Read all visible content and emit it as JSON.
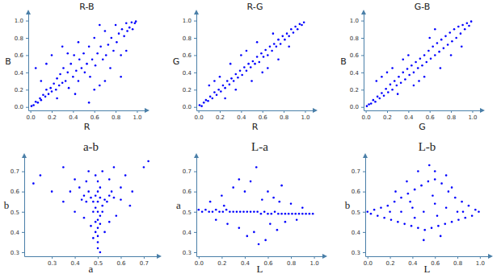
{
  "chart_data": [
    {
      "type": "scatter",
      "title": "R-B",
      "x_label": "R",
      "y_label": "B",
      "color": "#0000ff",
      "marker": "circle",
      "xlim": [
        -0.02,
        1.08
      ],
      "ylim": [
        -0.04,
        1.08
      ],
      "xticks": [
        {
          "value": 0,
          "label": "0.0"
        },
        0.2,
        0.4,
        0.6,
        0.8,
        {
          "value": 1,
          "label": "1.0"
        }
      ],
      "yticks": [
        {
          "value": 0,
          "label": "0.0"
        },
        0.2,
        0.4,
        0.6,
        0.8,
        {
          "value": 1,
          "label": "1.0"
        }
      ],
      "x": [
        0.01,
        0.03,
        0.05,
        0.07,
        0.09,
        0.1,
        0.12,
        0.14,
        0.15,
        0.17,
        0.19,
        0.2,
        0.22,
        0.24,
        0.25,
        0.27,
        0.28,
        0.3,
        0.31,
        0.33,
        0.35,
        0.36,
        0.38,
        0.4,
        0.41,
        0.43,
        0.45,
        0.46,
        0.48,
        0.5,
        0.51,
        0.53,
        0.55,
        0.56,
        0.58,
        0.6,
        0.61,
        0.63,
        0.65,
        0.66,
        0.68,
        0.7,
        0.71,
        0.73,
        0.75,
        0.76,
        0.78,
        0.8,
        0.81,
        0.83,
        0.85,
        0.86,
        0.88,
        0.9,
        0.91,
        0.93,
        0.95,
        0.96,
        0.98,
        0.99,
        0.05,
        0.1,
        0.2,
        0.15,
        0.3,
        0.55,
        0.7,
        0.85,
        0.9,
        0.6,
        0.42,
        0.25,
        0.65,
        0.45,
        0.35
      ],
      "values": [
        0.01,
        0.02,
        0.06,
        0.05,
        0.1,
        0.08,
        0.14,
        0.12,
        0.2,
        0.15,
        0.22,
        0.18,
        0.27,
        0.2,
        0.33,
        0.25,
        0.38,
        0.28,
        0.45,
        0.3,
        0.4,
        0.22,
        0.5,
        0.35,
        0.6,
        0.42,
        0.3,
        0.55,
        0.45,
        0.62,
        0.4,
        0.5,
        0.7,
        0.35,
        0.55,
        0.8,
        0.48,
        0.62,
        0.25,
        0.7,
        0.55,
        0.88,
        0.6,
        0.72,
        0.45,
        0.8,
        0.65,
        0.95,
        0.75,
        0.85,
        0.6,
        0.9,
        0.82,
        0.97,
        0.88,
        0.92,
        0.98,
        0.9,
        0.97,
        0.99,
        0.45,
        0.3,
        0.6,
        0.5,
        0.7,
        0.05,
        0.3,
        0.35,
        0.65,
        0.2,
        0.15,
        0.1,
        0.95,
        0.75,
        0.62
      ]
    },
    {
      "type": "scatter",
      "title": "R-G",
      "x_label": "R",
      "y_label": "G",
      "color": "#0000ff",
      "marker": "circle",
      "xlim": [
        -0.02,
        1.08
      ],
      "ylim": [
        -0.04,
        1.08
      ],
      "xticks": [
        {
          "value": 0,
          "label": "0.0"
        },
        0.2,
        0.4,
        0.6,
        0.8,
        {
          "value": 1,
          "label": "1.0"
        }
      ],
      "yticks": [
        {
          "value": 0,
          "label": "0.0"
        },
        0.2,
        0.4,
        0.6,
        0.8,
        {
          "value": 1,
          "label": "1.0"
        }
      ],
      "x": [
        0.01,
        0.03,
        0.05,
        0.07,
        0.09,
        0.11,
        0.13,
        0.15,
        0.17,
        0.19,
        0.21,
        0.23,
        0.25,
        0.27,
        0.29,
        0.31,
        0.33,
        0.35,
        0.37,
        0.39,
        0.41,
        0.43,
        0.45,
        0.47,
        0.49,
        0.51,
        0.53,
        0.55,
        0.57,
        0.59,
        0.61,
        0.63,
        0.65,
        0.67,
        0.69,
        0.71,
        0.73,
        0.75,
        0.77,
        0.79,
        0.81,
        0.83,
        0.85,
        0.87,
        0.89,
        0.91,
        0.93,
        0.95,
        0.97,
        0.99,
        0.1,
        0.2,
        0.3,
        0.4,
        0.35,
        0.5,
        0.55,
        0.6,
        0.7,
        0.75,
        0.45,
        0.25,
        0.85,
        0.65,
        0.15
      ],
      "values": [
        0.02,
        0.01,
        0.05,
        0.08,
        0.07,
        0.12,
        0.1,
        0.17,
        0.14,
        0.2,
        0.18,
        0.25,
        0.22,
        0.3,
        0.26,
        0.33,
        0.3,
        0.38,
        0.34,
        0.42,
        0.37,
        0.46,
        0.42,
        0.5,
        0.46,
        0.53,
        0.5,
        0.58,
        0.52,
        0.62,
        0.58,
        0.66,
        0.6,
        0.7,
        0.65,
        0.73,
        0.7,
        0.78,
        0.73,
        0.82,
        0.78,
        0.85,
        0.82,
        0.9,
        0.86,
        0.93,
        0.9,
        0.96,
        0.95,
        0.98,
        0.25,
        0.35,
        0.5,
        0.6,
        0.2,
        0.3,
        0.75,
        0.4,
        0.85,
        0.55,
        0.65,
        0.1,
        0.7,
        0.45,
        0.3
      ]
    },
    {
      "type": "scatter",
      "title": "G-B",
      "x_label": "G",
      "y_label": "B",
      "color": "#0000ff",
      "marker": "circle",
      "xlim": [
        -0.02,
        1.08
      ],
      "ylim": [
        -0.04,
        1.08
      ],
      "xticks": [
        {
          "value": 0,
          "label": "0.0"
        },
        0.2,
        0.4,
        0.6,
        0.8,
        {
          "value": 1,
          "label": "1.0"
        }
      ],
      "yticks": [
        {
          "value": 0,
          "label": "0.0"
        },
        0.2,
        0.4,
        0.6,
        0.8,
        {
          "value": 1,
          "label": "1.0"
        }
      ],
      "x": [
        0.01,
        0.03,
        0.05,
        0.07,
        0.09,
        0.11,
        0.13,
        0.15,
        0.17,
        0.19,
        0.21,
        0.23,
        0.25,
        0.27,
        0.29,
        0.31,
        0.33,
        0.35,
        0.37,
        0.39,
        0.41,
        0.43,
        0.45,
        0.47,
        0.49,
        0.51,
        0.53,
        0.55,
        0.57,
        0.59,
        0.61,
        0.63,
        0.65,
        0.67,
        0.69,
        0.71,
        0.73,
        0.75,
        0.77,
        0.79,
        0.81,
        0.83,
        0.85,
        0.87,
        0.89,
        0.91,
        0.93,
        0.95,
        0.97,
        0.99,
        0.1,
        0.2,
        0.3,
        0.4,
        0.5,
        0.6,
        0.7,
        0.8,
        0.35,
        0.55,
        0.25,
        0.65,
        0.45,
        0.15,
        0.9
      ],
      "values": [
        0.01,
        0.03,
        0.04,
        0.08,
        0.06,
        0.12,
        0.1,
        0.16,
        0.13,
        0.21,
        0.17,
        0.26,
        0.2,
        0.3,
        0.25,
        0.35,
        0.28,
        0.4,
        0.32,
        0.44,
        0.37,
        0.48,
        0.4,
        0.52,
        0.45,
        0.56,
        0.48,
        0.6,
        0.52,
        0.65,
        0.56,
        0.7,
        0.6,
        0.74,
        0.64,
        0.78,
        0.68,
        0.82,
        0.72,
        0.86,
        0.76,
        0.9,
        0.8,
        0.93,
        0.85,
        0.95,
        0.9,
        0.97,
        0.94,
        0.99,
        0.3,
        0.4,
        0.15,
        0.6,
        0.3,
        0.8,
        0.45,
        0.6,
        0.55,
        0.35,
        0.45,
        0.9,
        0.25,
        0.35,
        0.7
      ]
    },
    {
      "type": "scatter",
      "title": "a-b",
      "x_label": "a",
      "y_label": "b",
      "color": "#0000ff",
      "marker": "circle",
      "xlim": [
        0.18,
        0.76
      ],
      "ylim": [
        0.28,
        0.77
      ],
      "xticks": [
        0.3,
        0.4,
        0.5,
        0.6,
        0.7
      ],
      "yticks": [
        0.3,
        0.4,
        0.5,
        0.6,
        0.7
      ],
      "x": [
        0.5,
        0.49,
        0.51,
        0.5,
        0.49,
        0.51,
        0.5,
        0.48,
        0.52,
        0.5,
        0.49,
        0.51,
        0.5,
        0.49,
        0.5,
        0.51,
        0.48,
        0.52,
        0.47,
        0.53,
        0.46,
        0.54,
        0.45,
        0.55,
        0.44,
        0.56,
        0.43,
        0.57,
        0.5,
        0.5,
        0.49,
        0.52,
        0.45,
        0.55,
        0.42,
        0.6,
        0.38,
        0.62,
        0.35,
        0.65,
        0.3,
        0.7,
        0.25,
        0.72,
        0.4,
        0.58,
        0.47,
        0.53,
        0.5,
        0.51,
        0.46,
        0.57,
        0.35,
        0.22,
        0.64,
        0.55,
        0.44,
        0.48,
        0.6,
        0.4
      ],
      "values": [
        0.5,
        0.52,
        0.48,
        0.55,
        0.45,
        0.57,
        0.42,
        0.5,
        0.53,
        0.6,
        0.58,
        0.44,
        0.38,
        0.4,
        0.35,
        0.62,
        0.55,
        0.5,
        0.57,
        0.56,
        0.6,
        0.55,
        0.55,
        0.58,
        0.58,
        0.6,
        0.56,
        0.57,
        0.46,
        0.65,
        0.68,
        0.7,
        0.65,
        0.66,
        0.62,
        0.62,
        0.6,
        0.68,
        0.55,
        0.6,
        0.6,
        0.72,
        0.68,
        0.75,
        0.5,
        0.48,
        0.43,
        0.4,
        0.32,
        0.3,
        0.7,
        0.72,
        0.72,
        0.64,
        0.53,
        0.45,
        0.47,
        0.37,
        0.56,
        0.66
      ]
    },
    {
      "type": "scatter",
      "title": "L-a",
      "x_label": "L",
      "y_label": "a",
      "color": "#0000ff",
      "marker": "circle",
      "xlim": [
        -0.02,
        1.08
      ],
      "ylim": [
        0.28,
        0.77
      ],
      "xticks": [
        {
          "value": 0,
          "label": "0.0"
        },
        0.2,
        0.4,
        0.6,
        0.8,
        {
          "value": 1,
          "label": "1.0"
        }
      ],
      "yticks": [
        0.3,
        0.4,
        0.5,
        0.6,
        0.7
      ],
      "x": [
        0,
        0.03,
        0.06,
        0.09,
        0.12,
        0.15,
        0.18,
        0.21,
        0.24,
        0.27,
        0.3,
        0.33,
        0.36,
        0.39,
        0.42,
        0.45,
        0.48,
        0.51,
        0.54,
        0.57,
        0.6,
        0.63,
        0.66,
        0.69,
        0.72,
        0.75,
        0.78,
        0.81,
        0.84,
        0.87,
        0.9,
        0.93,
        0.96,
        0.99,
        0.1,
        0.15,
        0.2,
        0.25,
        0.3,
        0.35,
        0.4,
        0.42,
        0.45,
        0.5,
        0.48,
        0.55,
        0.58,
        0.6,
        0.62,
        0.65,
        0.68,
        0.7,
        0.75,
        0.8,
        0.85,
        0.9,
        0.35,
        0.52,
        0.22,
        0.72
      ],
      "values": [
        0.51,
        0.5,
        0.51,
        0.5,
        0.5,
        0.51,
        0.5,
        0.5,
        0.51,
        0.5,
        0.5,
        0.5,
        0.5,
        0.5,
        0.5,
        0.5,
        0.5,
        0.5,
        0.49,
        0.5,
        0.49,
        0.49,
        0.5,
        0.49,
        0.49,
        0.49,
        0.49,
        0.49,
        0.49,
        0.49,
        0.49,
        0.49,
        0.49,
        0.49,
        0.55,
        0.46,
        0.58,
        0.44,
        0.62,
        0.42,
        0.6,
        0.38,
        0.65,
        0.72,
        0.4,
        0.56,
        0.36,
        0.6,
        0.44,
        0.57,
        0.41,
        0.55,
        0.45,
        0.54,
        0.46,
        0.52,
        0.66,
        0.34,
        0.53,
        0.63
      ]
    },
    {
      "type": "scatter",
      "title": "L-b",
      "x_label": "L",
      "y_label": "b",
      "color": "#0000ff",
      "marker": "circle",
      "xlim": [
        -0.02,
        1.08
      ],
      "ylim": [
        0.28,
        0.77
      ],
      "xticks": [
        {
          "value": 0,
          "label": "0.0"
        },
        0.2,
        0.4,
        0.6,
        0.8,
        {
          "value": 1,
          "label": "1.0"
        }
      ],
      "yticks": [
        0.3,
        0.4,
        0.5,
        0.6,
        0.7
      ],
      "x": [
        0,
        0.03,
        0.06,
        0.09,
        0.12,
        0.15,
        0.18,
        0.21,
        0.24,
        0.27,
        0.3,
        0.33,
        0.36,
        0.39,
        0.42,
        0.45,
        0.48,
        0.51,
        0.54,
        0.57,
        0.6,
        0.63,
        0.66,
        0.69,
        0.72,
        0.75,
        0.78,
        0.81,
        0.84,
        0.87,
        0.9,
        0.93,
        0.96,
        0.99,
        0.2,
        0.3,
        0.4,
        0.5,
        0.6,
        0.7,
        0.8,
        0.45,
        0.55,
        0.6,
        0.5,
        0.65,
        0.35,
        0.25,
        0.7,
        0.58,
        0.42,
        0.62,
        0.38,
        0.75,
        0.85
      ],
      "values": [
        0.5,
        0.49,
        0.51,
        0.48,
        0.52,
        0.47,
        0.53,
        0.46,
        0.55,
        0.45,
        0.57,
        0.44,
        0.59,
        0.43,
        0.61,
        0.42,
        0.63,
        0.41,
        0.65,
        0.42,
        0.66,
        0.43,
        0.64,
        0.44,
        0.6,
        0.45,
        0.57,
        0.46,
        0.55,
        0.47,
        0.53,
        0.48,
        0.51,
        0.5,
        0.5,
        0.5,
        0.52,
        0.5,
        0.54,
        0.52,
        0.5,
        0.7,
        0.73,
        0.7,
        0.36,
        0.38,
        0.65,
        0.6,
        0.68,
        0.58,
        0.47,
        0.48,
        0.55,
        0.62,
        0.5
      ]
    }
  ]
}
